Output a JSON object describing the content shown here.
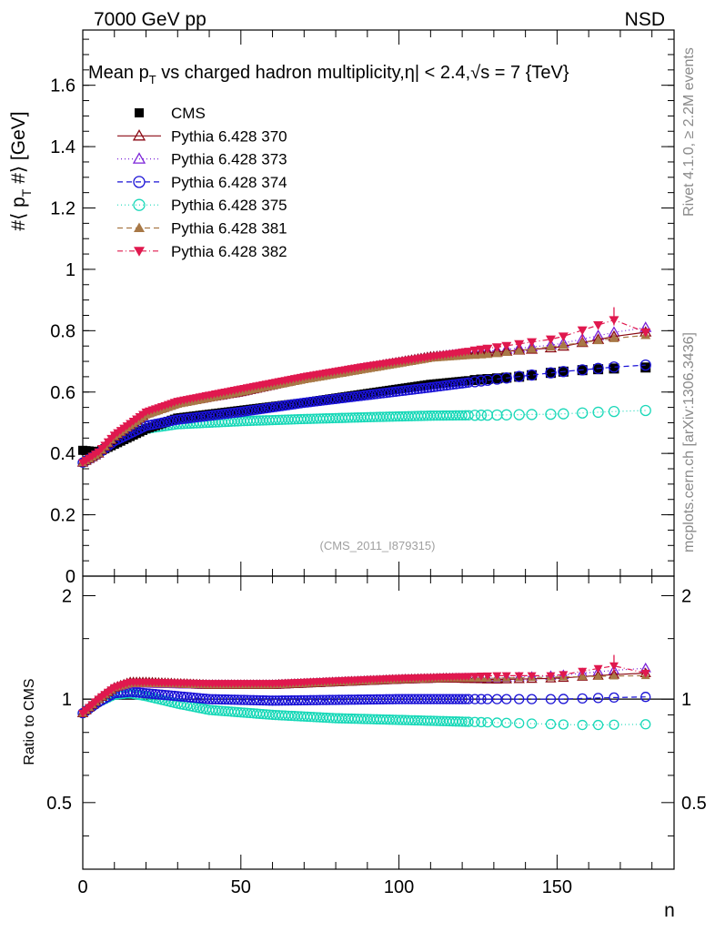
{
  "header": {
    "left": "7000 GeV pp",
    "right": "NSD"
  },
  "side_text": {
    "rivet": "Rivet 4.1.0, ≥ 2.2M events",
    "mcplots": "mcplots.cern.ch [arXiv:1306.3436]"
  },
  "colors": {
    "CMS": "#000000",
    "370": "#8b0a14",
    "373": "#7b22d8",
    "374": "#1a12d6",
    "375": "#18d8b8",
    "381": "#a87846",
    "382": "#e0184e"
  },
  "chart_data": [
    {
      "type": "scatter",
      "title": "Mean p_T vs charged hadron multiplicity, |η| < 2.4, √s = 7 {TeV}",
      "title_parts": {
        "mean": "Mean p",
        "sub": "T",
        "rest": " vs charged hadron multiplicity,",
        "eta": "η",
        "eta_cut": "| < 2.4,",
        "sqrt": "√",
        "energy": "s = 7 {TeV}"
      },
      "ylabel": "#⟨ p_T #⟩ [GeV]",
      "ylabel_parts": {
        "a": "#⟨ p",
        "sub": "T",
        "b": " #⟩ [GeV]"
      },
      "xlabel": "n",
      "xlim": [
        0,
        187
      ],
      "ylim": [
        0,
        1.78
      ],
      "yticks": [
        "0",
        "0.2",
        "0.4",
        "0.6",
        "0.8",
        "1",
        "1.2",
        "1.4",
        "1.6"
      ],
      "watermark": "(CMS_2011_I879315)",
      "legend_position": "top-left",
      "legend": [
        "CMS",
        "Pythia 6.428 370",
        "Pythia 6.428 373",
        "Pythia 6.428 374",
        "Pythia 6.428 375",
        "Pythia 6.428 381",
        "Pythia 6.428 382"
      ],
      "series_curves": [
        {
          "name": "CMS",
          "marker": "square",
          "line": "none",
          "points": [
            [
              0,
              0.41
            ],
            [
              5,
              0.405
            ],
            [
              10,
              0.43
            ],
            [
              20,
              0.48
            ],
            [
              30,
              0.515
            ],
            [
              50,
              0.54
            ],
            [
              70,
              0.565
            ],
            [
              90,
              0.595
            ],
            [
              110,
              0.625
            ],
            [
              125,
              0.64
            ],
            [
              138,
              0.65
            ],
            [
              150,
              0.665
            ],
            [
              160,
              0.673
            ],
            [
              175,
              0.68
            ]
          ]
        },
        {
          "name": "Pythia 6.428 370",
          "marker": "triangle-open",
          "line": "solid",
          "points": [
            [
              0,
              0.37
            ],
            [
              5,
              0.4
            ],
            [
              10,
              0.455
            ],
            [
              20,
              0.53
            ],
            [
              30,
              0.565
            ],
            [
              50,
              0.6
            ],
            [
              70,
              0.645
            ],
            [
              90,
              0.68
            ],
            [
              110,
              0.715
            ],
            [
              130,
              0.73
            ],
            [
              150,
              0.745
            ],
            [
              175,
              0.795
            ]
          ]
        },
        {
          "name": "Pythia 6.428 373",
          "marker": "triangle-open",
          "line": "dotted",
          "points": [
            [
              0,
              0.37
            ],
            [
              5,
              0.4
            ],
            [
              10,
              0.455
            ],
            [
              20,
              0.53
            ],
            [
              30,
              0.565
            ],
            [
              50,
              0.6
            ],
            [
              70,
              0.645
            ],
            [
              90,
              0.68
            ],
            [
              110,
              0.715
            ],
            [
              130,
              0.735
            ],
            [
              150,
              0.755
            ],
            [
              175,
              0.81
            ]
          ]
        },
        {
          "name": "Pythia 6.428 374",
          "marker": "circle-open",
          "line": "dashed",
          "points": [
            [
              0,
              0.37
            ],
            [
              5,
              0.4
            ],
            [
              10,
              0.44
            ],
            [
              20,
              0.49
            ],
            [
              30,
              0.51
            ],
            [
              50,
              0.535
            ],
            [
              70,
              0.565
            ],
            [
              90,
              0.59
            ],
            [
              110,
              0.615
            ],
            [
              125,
              0.635
            ],
            [
              150,
              0.665
            ],
            [
              175,
              0.688
            ]
          ]
        },
        {
          "name": "Pythia 6.428 375",
          "marker": "circle-open",
          "line": "dotted",
          "points": [
            [
              0,
              0.37
            ],
            [
              5,
              0.4
            ],
            [
              10,
              0.44
            ],
            [
              20,
              0.48
            ],
            [
              30,
              0.495
            ],
            [
              50,
              0.505
            ],
            [
              70,
              0.512
            ],
            [
              90,
              0.518
            ],
            [
              110,
              0.523
            ],
            [
              130,
              0.525
            ],
            [
              150,
              0.528
            ],
            [
              175,
              0.54
            ]
          ]
        },
        {
          "name": "Pythia 6.428 381",
          "marker": "triangle-filled",
          "line": "dashed",
          "points": [
            [
              0,
              0.37
            ],
            [
              5,
              0.4
            ],
            [
              10,
              0.455
            ],
            [
              20,
              0.525
            ],
            [
              30,
              0.56
            ],
            [
              50,
              0.6
            ],
            [
              70,
              0.64
            ],
            [
              90,
              0.675
            ],
            [
              110,
              0.71
            ],
            [
              130,
              0.725
            ],
            [
              150,
              0.75
            ],
            [
              175,
              0.785
            ]
          ]
        },
        {
          "name": "Pythia 6.428 382",
          "marker": "triangle-down-filled",
          "line": "dashdot",
          "points": [
            [
              0,
              0.37
            ],
            [
              5,
              0.405
            ],
            [
              10,
              0.46
            ],
            [
              20,
              0.535
            ],
            [
              30,
              0.57
            ],
            [
              50,
              0.61
            ],
            [
              70,
              0.65
            ],
            [
              90,
              0.685
            ],
            [
              110,
              0.715
            ],
            [
              130,
              0.745
            ],
            [
              150,
              0.775
            ],
            [
              168,
              0.835
            ],
            [
              175,
              0.795
            ]
          ]
        }
      ]
    },
    {
      "type": "scatter",
      "ylabel": "Ratio to CMS",
      "xlabel": "n",
      "xlim": [
        0,
        187
      ],
      "ylim": [
        0.32,
        2.28
      ],
      "yscale": "log",
      "yticks": [
        "0.5",
        "1",
        "2"
      ],
      "xticks": [
        "0",
        "50",
        "100",
        "150"
      ],
      "reference_line": 1,
      "series_curves": [
        {
          "name": "Pythia 6.428 370",
          "points": [
            [
              0,
              0.91
            ],
            [
              5,
              1.0
            ],
            [
              10,
              1.08
            ],
            [
              15,
              1.12
            ],
            [
              20,
              1.12
            ],
            [
              40,
              1.1
            ],
            [
              60,
              1.1
            ],
            [
              80,
              1.12
            ],
            [
              100,
              1.14
            ],
            [
              115,
              1.15
            ],
            [
              130,
              1.14
            ],
            [
              150,
              1.15
            ],
            [
              175,
              1.19
            ]
          ]
        },
        {
          "name": "Pythia 6.428 373",
          "points": [
            [
              0,
              0.91
            ],
            [
              5,
              1.0
            ],
            [
              10,
              1.08
            ],
            [
              15,
              1.11
            ],
            [
              20,
              1.11
            ],
            [
              40,
              1.1
            ],
            [
              60,
              1.1
            ],
            [
              80,
              1.12
            ],
            [
              100,
              1.14
            ],
            [
              115,
              1.15
            ],
            [
              130,
              1.15
            ],
            [
              150,
              1.17
            ],
            [
              175,
              1.23
            ]
          ]
        },
        {
          "name": "Pythia 6.428 374",
          "points": [
            [
              0,
              0.91
            ],
            [
              5,
              0.98
            ],
            [
              10,
              1.04
            ],
            [
              15,
              1.05
            ],
            [
              20,
              1.04
            ],
            [
              40,
              1.0
            ],
            [
              60,
              0.99
            ],
            [
              80,
              0.995
            ],
            [
              100,
              1.0
            ],
            [
              120,
              1.0
            ],
            [
              150,
              1.0
            ],
            [
              175,
              1.015
            ]
          ]
        },
        {
          "name": "Pythia 6.428 375",
          "points": [
            [
              0,
              0.91
            ],
            [
              5,
              0.98
            ],
            [
              10,
              1.03
            ],
            [
              15,
              1.04
            ],
            [
              20,
              1.02
            ],
            [
              30,
              0.97
            ],
            [
              40,
              0.93
            ],
            [
              60,
              0.9
            ],
            [
              80,
              0.88
            ],
            [
              100,
              0.87
            ],
            [
              120,
              0.86
            ],
            [
              140,
              0.85
            ],
            [
              160,
              0.84
            ],
            [
              175,
              0.845
            ]
          ]
        },
        {
          "name": "Pythia 6.428 381",
          "points": [
            [
              0,
              0.91
            ],
            [
              5,
              1.0
            ],
            [
              10,
              1.08
            ],
            [
              15,
              1.11
            ],
            [
              20,
              1.11
            ],
            [
              40,
              1.1
            ],
            [
              60,
              1.1
            ],
            [
              80,
              1.12
            ],
            [
              100,
              1.14
            ],
            [
              115,
              1.15
            ],
            [
              130,
              1.15
            ],
            [
              150,
              1.16
            ],
            [
              175,
              1.17
            ]
          ]
        },
        {
          "name": "Pythia 6.428 382",
          "points": [
            [
              0,
              0.91
            ],
            [
              5,
              1.0
            ],
            [
              10,
              1.08
            ],
            [
              15,
              1.12
            ],
            [
              20,
              1.12
            ],
            [
              40,
              1.11
            ],
            [
              60,
              1.11
            ],
            [
              80,
              1.13
            ],
            [
              100,
              1.15
            ],
            [
              115,
              1.16
            ],
            [
              130,
              1.17
            ],
            [
              150,
              1.17
            ],
            [
              168,
              1.25
            ],
            [
              175,
              1.19
            ]
          ]
        }
      ]
    }
  ]
}
